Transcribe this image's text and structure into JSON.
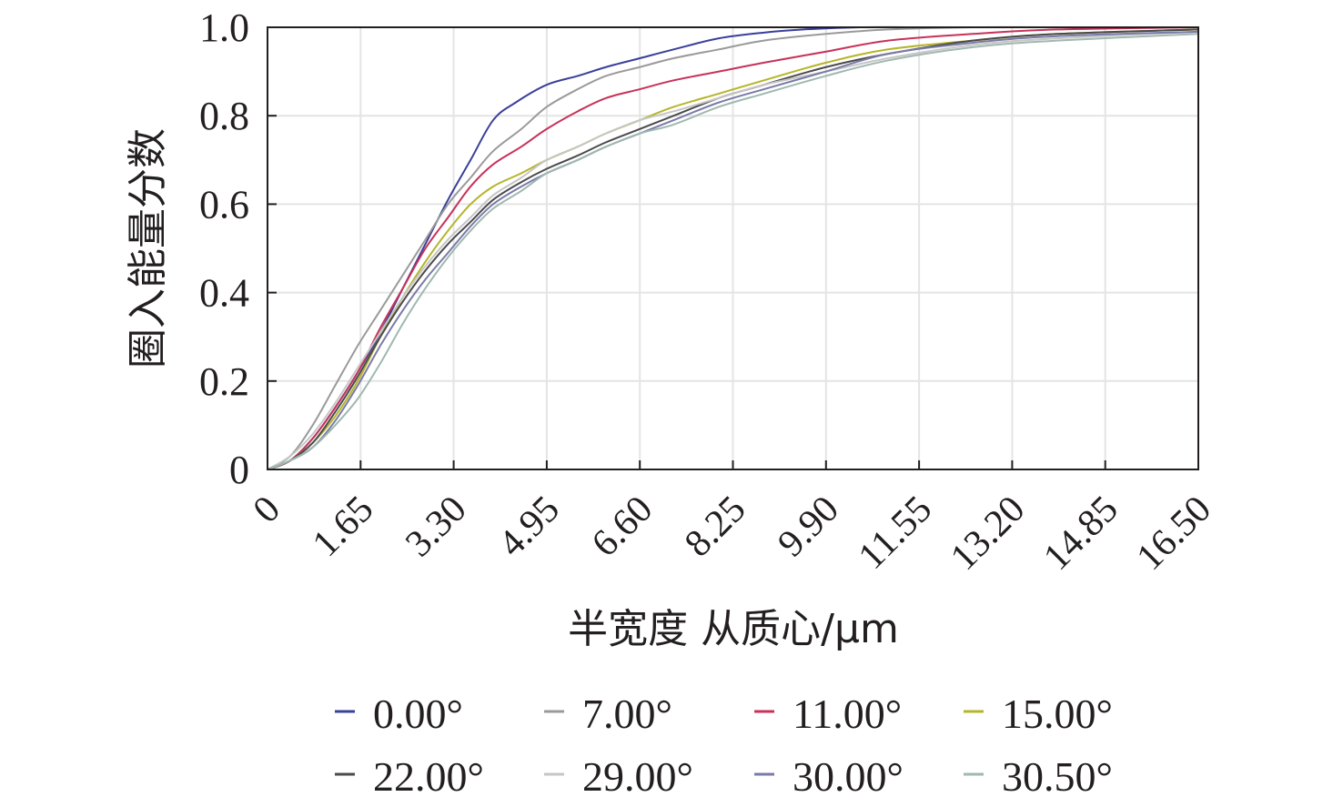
{
  "chart_data": {
    "type": "line",
    "xlabel": "半宽度 从质心/μm",
    "ylabel": "圈入能量分数",
    "xlim": [
      0,
      16.5
    ],
    "ylim": [
      0,
      1.0
    ],
    "xticks": [
      0,
      1.65,
      3.3,
      4.95,
      6.6,
      8.25,
      9.9,
      11.55,
      13.2,
      14.85,
      16.5
    ],
    "xtick_labels": [
      "0",
      "1.65",
      "3.30",
      "4.95",
      "6.60",
      "8.25",
      "9.90",
      "11.55",
      "13.20",
      "14.85",
      "16.50"
    ],
    "yticks": [
      0,
      0.2,
      0.4,
      0.6,
      0.8,
      1.0
    ],
    "ytick_labels": [
      "0",
      "0.2",
      "0.4",
      "0.6",
      "0.8",
      "1.0"
    ],
    "grid": true,
    "legend_position": "bottom",
    "series": [
      {
        "name": "0.00°",
        "color": "#3a3f9a",
        "x": [
          0,
          0.4,
          0.8,
          1.2,
          1.6,
          2.0,
          2.4,
          2.8,
          3.2,
          3.6,
          4.0,
          4.4,
          4.95,
          5.5,
          6.0,
          6.6,
          7.2,
          8.0,
          8.8,
          9.5,
          10.5,
          11.5,
          13.0,
          14.5,
          16.5
        ],
        "y": [
          0,
          0.02,
          0.07,
          0.14,
          0.22,
          0.31,
          0.41,
          0.51,
          0.61,
          0.7,
          0.79,
          0.83,
          0.87,
          0.89,
          0.91,
          0.93,
          0.95,
          0.975,
          0.988,
          0.995,
          1.0,
          1.0,
          1.0,
          1.0,
          1.0
        ]
      },
      {
        "name": "7.00°",
        "color": "#9a9a9a",
        "x": [
          0,
          0.4,
          0.8,
          1.2,
          1.6,
          2.0,
          2.4,
          2.8,
          3.2,
          3.6,
          4.0,
          4.5,
          4.95,
          5.5,
          6.0,
          6.6,
          7.2,
          8.0,
          8.8,
          9.9,
          11.0,
          12.5,
          14.0,
          16.5
        ],
        "y": [
          0,
          0.03,
          0.1,
          0.19,
          0.28,
          0.36,
          0.44,
          0.52,
          0.6,
          0.66,
          0.72,
          0.77,
          0.82,
          0.86,
          0.89,
          0.91,
          0.93,
          0.95,
          0.97,
          0.985,
          0.995,
          1.0,
          1.0,
          1.0
        ]
      },
      {
        "name": "11.00°",
        "color": "#c7325a",
        "x": [
          0,
          0.4,
          0.8,
          1.2,
          1.6,
          2.0,
          2.4,
          2.8,
          3.2,
          3.6,
          4.0,
          4.5,
          4.95,
          5.5,
          6.0,
          6.6,
          7.2,
          8.0,
          8.8,
          9.9,
          11.0,
          12.5,
          14.0,
          16.5
        ],
        "y": [
          0,
          0.02,
          0.07,
          0.14,
          0.22,
          0.32,
          0.41,
          0.5,
          0.57,
          0.64,
          0.69,
          0.73,
          0.77,
          0.81,
          0.84,
          0.86,
          0.88,
          0.9,
          0.92,
          0.945,
          0.97,
          0.985,
          0.995,
          1.0
        ]
      },
      {
        "name": "15.00°",
        "color": "#b5b52a",
        "x": [
          0,
          0.4,
          0.8,
          1.2,
          1.6,
          2.0,
          2.4,
          2.8,
          3.2,
          3.6,
          4.0,
          4.5,
          4.95,
          5.5,
          6.0,
          6.6,
          7.2,
          8.0,
          8.8,
          9.9,
          11.0,
          12.5,
          14.0,
          16.5
        ],
        "y": [
          0,
          0.02,
          0.06,
          0.12,
          0.2,
          0.3,
          0.39,
          0.47,
          0.54,
          0.6,
          0.64,
          0.67,
          0.7,
          0.73,
          0.76,
          0.79,
          0.82,
          0.85,
          0.88,
          0.92,
          0.95,
          0.97,
          0.985,
          0.995
        ]
      },
      {
        "name": "22.00°",
        "color": "#4a4a4a",
        "x": [
          0,
          0.4,
          0.8,
          1.2,
          1.6,
          2.0,
          2.4,
          2.8,
          3.2,
          3.6,
          4.0,
          4.5,
          4.95,
          5.5,
          6.0,
          6.6,
          7.2,
          8.0,
          8.8,
          9.9,
          11.0,
          12.5,
          14.0,
          16.5
        ],
        "y": [
          0,
          0.02,
          0.06,
          0.13,
          0.21,
          0.3,
          0.38,
          0.45,
          0.51,
          0.56,
          0.61,
          0.65,
          0.68,
          0.71,
          0.74,
          0.77,
          0.8,
          0.84,
          0.87,
          0.91,
          0.94,
          0.97,
          0.985,
          0.995
        ]
      },
      {
        "name": "29.00°",
        "color": "#c6c6c6",
        "x": [
          0,
          0.4,
          0.8,
          1.2,
          1.6,
          2.0,
          2.4,
          2.8,
          3.2,
          3.6,
          4.0,
          4.5,
          4.95,
          5.5,
          6.0,
          6.6,
          7.2,
          8.0,
          8.8,
          9.9,
          11.0,
          12.5,
          14.0,
          16.5
        ],
        "y": [
          0,
          0.03,
          0.08,
          0.15,
          0.23,
          0.31,
          0.39,
          0.46,
          0.52,
          0.57,
          0.62,
          0.66,
          0.7,
          0.73,
          0.76,
          0.79,
          0.81,
          0.84,
          0.87,
          0.9,
          0.93,
          0.96,
          0.975,
          0.99
        ]
      },
      {
        "name": "30.00°",
        "color": "#7a7aa8",
        "x": [
          0,
          0.4,
          0.8,
          1.2,
          1.6,
          2.0,
          2.4,
          2.8,
          3.2,
          3.6,
          4.0,
          4.5,
          4.95,
          5.5,
          6.0,
          6.6,
          7.2,
          8.0,
          8.8,
          9.9,
          11.0,
          12.5,
          14.0,
          16.5
        ],
        "y": [
          0,
          0.02,
          0.05,
          0.11,
          0.19,
          0.28,
          0.36,
          0.43,
          0.49,
          0.55,
          0.6,
          0.64,
          0.67,
          0.7,
          0.73,
          0.76,
          0.79,
          0.83,
          0.86,
          0.9,
          0.94,
          0.965,
          0.98,
          0.99
        ]
      },
      {
        "name": "30.50°",
        "color": "#9fb8b0",
        "x": [
          0,
          0.4,
          0.8,
          1.2,
          1.6,
          2.0,
          2.4,
          2.8,
          3.2,
          3.6,
          4.0,
          4.5,
          4.95,
          5.5,
          6.0,
          6.6,
          7.2,
          8.0,
          8.8,
          9.9,
          11.0,
          12.5,
          14.0,
          16.5
        ],
        "y": [
          0,
          0.02,
          0.05,
          0.1,
          0.16,
          0.24,
          0.33,
          0.41,
          0.48,
          0.54,
          0.59,
          0.63,
          0.67,
          0.7,
          0.73,
          0.76,
          0.78,
          0.82,
          0.85,
          0.89,
          0.925,
          0.955,
          0.97,
          0.985
        ]
      }
    ]
  }
}
